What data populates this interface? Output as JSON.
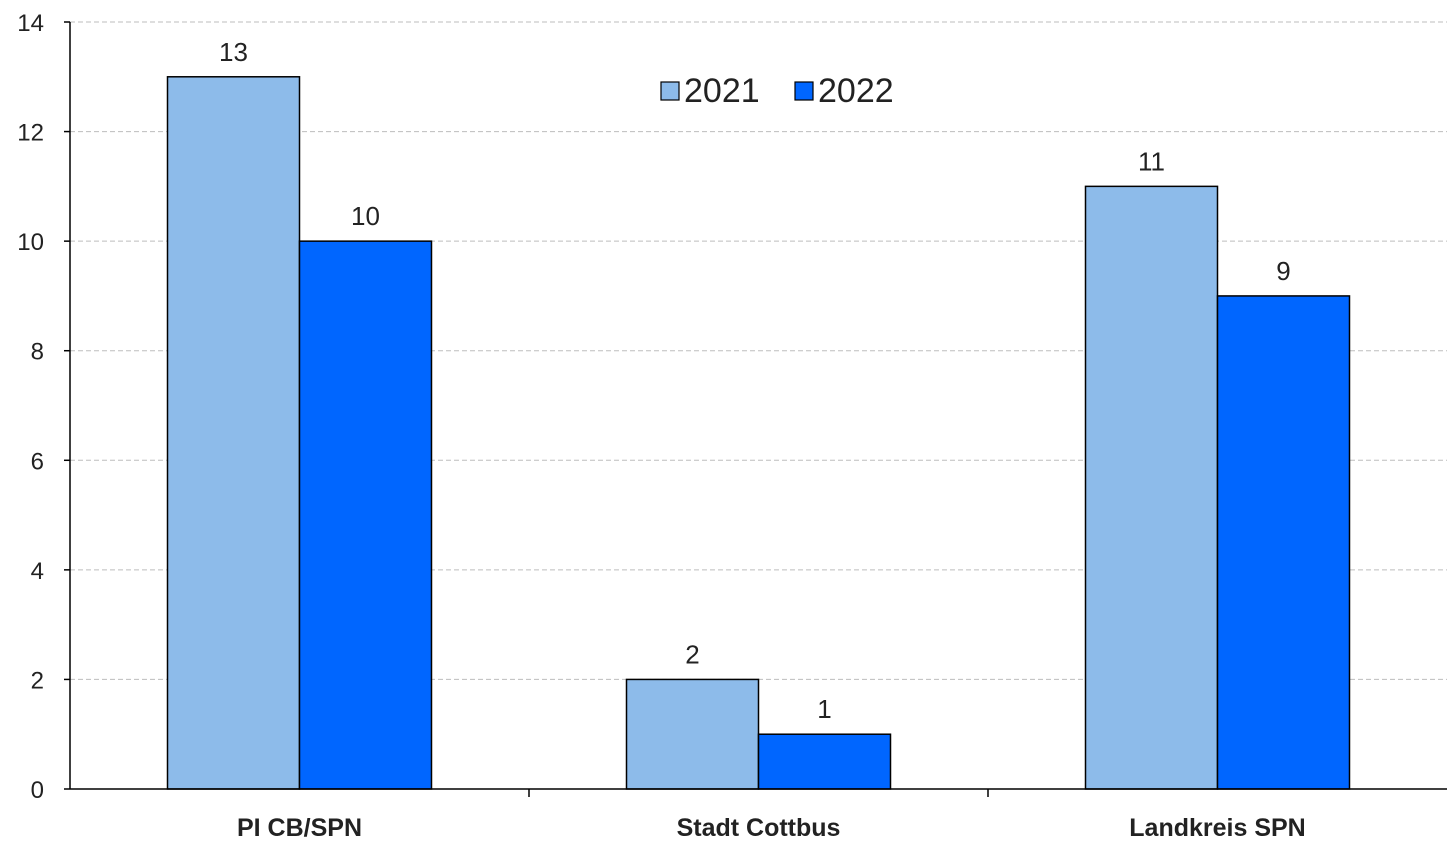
{
  "chart_data": {
    "type": "bar",
    "categories": [
      "PI CB/SPN",
      "Stadt Cottbus",
      "Landkreis SPN"
    ],
    "series": [
      {
        "name": "2021",
        "values": [
          13,
          2,
          11
        ],
        "color": "#8dbbea"
      },
      {
        "name": "2022",
        "values": [
          10,
          1,
          9
        ],
        "color": "#0066ff"
      }
    ],
    "ylim": [
      0,
      14
    ],
    "yticks": [
      0,
      2,
      4,
      6,
      8,
      10,
      12,
      14
    ],
    "grid": true,
    "legend": "top-center",
    "data_labels": true,
    "title": "",
    "xlabel": "",
    "ylabel": ""
  }
}
